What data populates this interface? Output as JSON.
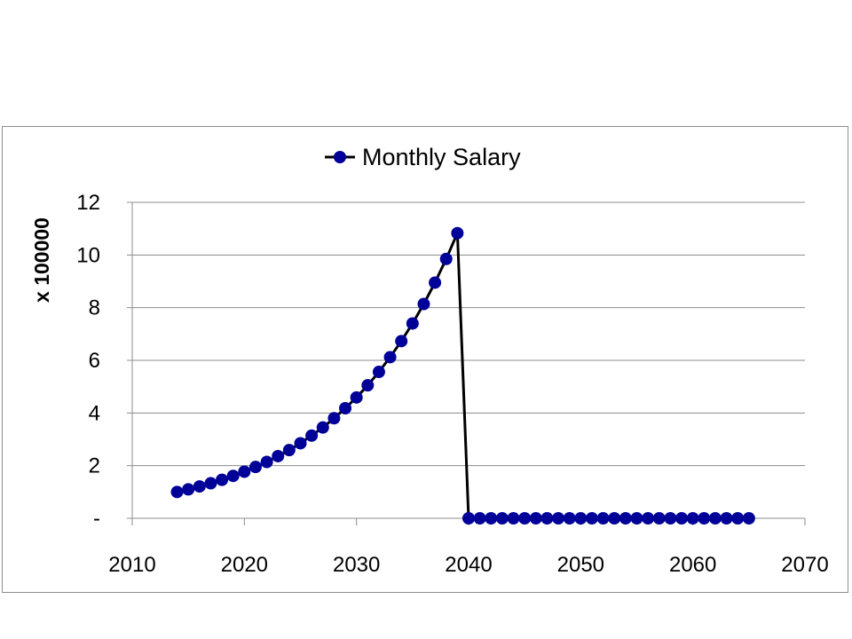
{
  "chart_data": {
    "type": "line",
    "title": "",
    "xlabel": "",
    "ylabel": "x 100000",
    "xlim": [
      2010,
      2070
    ],
    "ylim": [
      0,
      12
    ],
    "x_ticks": [
      "2010",
      "2020",
      "2030",
      "2040",
      "2050",
      "2060",
      "2070"
    ],
    "y_ticks": [
      "-",
      "2",
      "4",
      "6",
      "8",
      "10",
      "12"
    ],
    "grid": "horizontal",
    "legend_position": "top",
    "colors": {
      "line": "#000000",
      "marker": "#000099",
      "grid": "#8c8c8c"
    },
    "series": [
      {
        "name": "Monthly Salary",
        "x": [
          2014,
          2015,
          2016,
          2017,
          2018,
          2019,
          2020,
          2021,
          2022,
          2023,
          2024,
          2025,
          2026,
          2027,
          2028,
          2029,
          2030,
          2031,
          2032,
          2033,
          2034,
          2035,
          2036,
          2037,
          2038,
          2039,
          2040,
          2041,
          2042,
          2043,
          2044,
          2045,
          2046,
          2047,
          2048,
          2049,
          2050,
          2051,
          2052,
          2053,
          2054,
          2055,
          2056,
          2057,
          2058,
          2059,
          2060,
          2061,
          2062,
          2063,
          2064,
          2065
        ],
        "values": [
          1.0,
          1.1,
          1.21,
          1.33,
          1.46,
          1.61,
          1.77,
          1.95,
          2.14,
          2.36,
          2.59,
          2.85,
          3.14,
          3.45,
          3.8,
          4.18,
          4.59,
          5.05,
          5.56,
          6.12,
          6.73,
          7.4,
          8.14,
          8.95,
          9.85,
          10.83,
          0,
          0,
          0,
          0,
          0,
          0,
          0,
          0,
          0,
          0,
          0,
          0,
          0,
          0,
          0,
          0,
          0,
          0,
          0,
          0,
          0,
          0,
          0,
          0,
          0,
          0
        ]
      }
    ]
  }
}
